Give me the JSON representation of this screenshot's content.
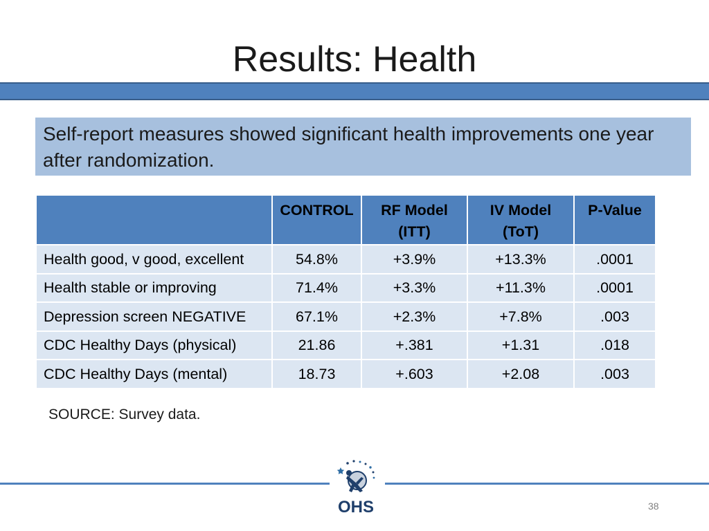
{
  "slide": {
    "title": "Results: Health",
    "callout": "Self-report measures showed significant health improvements one year after randomization.",
    "source": "SOURCE: Survey data.",
    "page_number": "38",
    "logo_text": "OHS"
  },
  "table": {
    "headers": [
      "",
      "CONTROL",
      "RF Model (ITT)",
      "IV Model (ToT)",
      "P-Value"
    ],
    "header_lines": [
      [
        ""
      ],
      [
        "CONTROL"
      ],
      [
        "RF Model",
        "(ITT)"
      ],
      [
        "IV Model",
        "(ToT)"
      ],
      [
        "P-Value"
      ]
    ],
    "rows": [
      [
        "Health good, v good, excellent",
        "54.8%",
        "+3.9%",
        "+13.3%",
        ".0001"
      ],
      [
        "Health stable or improving",
        "71.4%",
        "+3.3%",
        "+11.3%",
        ".0001"
      ],
      [
        "Depression screen NEGATIVE",
        "67.1%",
        "+2.3%",
        "+7.8%",
        ".003"
      ],
      [
        "CDC Healthy Days (physical)",
        "21.86",
        "+.381",
        "+1.31",
        ".018"
      ],
      [
        "CDC Healthy Days (mental)",
        "18.73",
        "+.603",
        "+2.08",
        ".003"
      ]
    ]
  },
  "colors": {
    "accent": "#4f81bd",
    "callout_bg": "#a7c0de",
    "cell_bg": "#dce6f2",
    "logo_dark": "#1f3f6b"
  }
}
